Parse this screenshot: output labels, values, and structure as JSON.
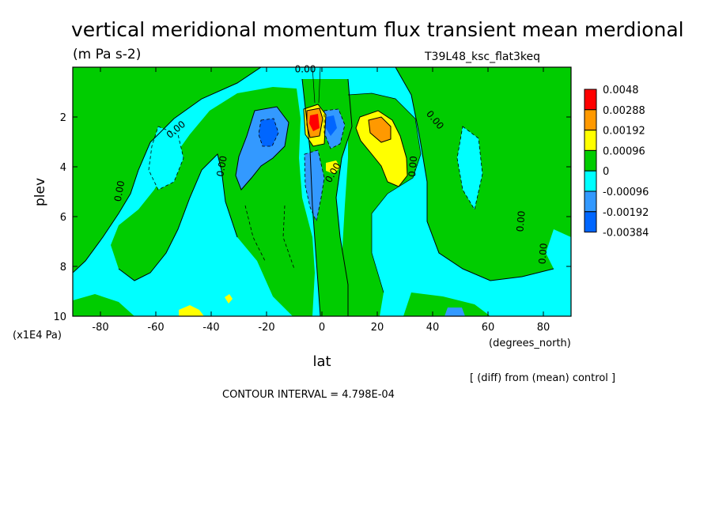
{
  "chart_data": {
    "type": "heatmap",
    "title": "vertical meridional momentum flux transient mean merdional",
    "units": "(m Pa s-2)",
    "experiment": "T39L48_ksc_flat3keq",
    "xlabel": "lat",
    "xunits": "(degrees_north)",
    "ylabel": "plev",
    "yunits": "(x1E4 Pa)",
    "diff_note": "[ (diff) from (mean) control ]",
    "contour_interval": "CONTOUR INTERVAL = 4.798E-04",
    "xlim": [
      -90,
      90
    ],
    "ylim": [
      0,
      10
    ],
    "y_inverted": true,
    "x_ticks": [
      -80,
      -60,
      -40,
      -20,
      0,
      20,
      40,
      60,
      80
    ],
    "x_tick_labels": [
      "-80",
      "-60",
      "-40",
      "-20",
      "0",
      "20",
      "40",
      "60",
      "80"
    ],
    "y_ticks": [
      2,
      4,
      6,
      8,
      10
    ],
    "y_tick_labels": [
      "2",
      "4",
      "6",
      "8",
      "10"
    ],
    "colorbar": {
      "labels": [
        "0.0048",
        "0.00288",
        "0.00192",
        "0.00096",
        "0",
        "-0.00096",
        "-0.00192",
        "-0.00384"
      ],
      "colors": [
        "#ff0000",
        "#ff9900",
        "#ffff00",
        "#00cc00",
        "#00ffff",
        "#3399ff",
        "#0066ff"
      ]
    },
    "contour_labels": [
      {
        "text": "0.00",
        "lat": -52,
        "plev": 2.6,
        "angle": -40
      },
      {
        "text": "0.00",
        "lat": -72,
        "plev": 5.0,
        "angle": -80
      },
      {
        "text": "0.00",
        "lat": -35,
        "plev": 4.0,
        "angle": -80
      },
      {
        "text": "0.00",
        "lat": -6,
        "plev": 0.2,
        "angle": 0
      },
      {
        "text": "0.00",
        "lat": 5,
        "plev": 4.3,
        "angle": -60
      },
      {
        "text": "0.00",
        "lat": 34,
        "plev": 4.0,
        "angle": -85
      },
      {
        "text": "0.00",
        "lat": 40,
        "plev": 2.2,
        "angle": 50
      },
      {
        "text": "0.00",
        "lat": 73,
        "plev": 6.2,
        "angle": -85
      },
      {
        "text": "0.00",
        "lat": 81,
        "plev": 7.5,
        "angle": -85
      }
    ],
    "fields": [
      {
        "band": "positive_high",
        "value_range": [
          0.00288,
          0.0048
        ],
        "lat": [
          -3,
          2
        ],
        "plev": [
          1.8,
          3.0
        ]
      },
      {
        "band": "positive_mid",
        "value_range": [
          0.00192,
          0.00288
        ],
        "lat": [
          18,
          24
        ],
        "plev": [
          2.1,
          3.2
        ]
      },
      {
        "band": "positive_low",
        "value_range": [
          0.00096,
          0.00192
        ],
        "lat": [
          13,
          31
        ],
        "plev": [
          1.8,
          4.8
        ]
      },
      {
        "band": "negative_low",
        "value_range": [
          -0.00192,
          -0.00096
        ],
        "lat": [
          -30,
          -10
        ],
        "plev": [
          1.8,
          4.8
        ]
      },
      {
        "band": "negative_low",
        "value_range": [
          -0.00192,
          -0.00096
        ],
        "lat": [
          -6,
          1
        ],
        "plev": [
          3.5,
          9.6
        ]
      },
      {
        "band": "negative_mid",
        "value_range": [
          -0.00384,
          -0.00192
        ],
        "lat": [
          2,
          8
        ],
        "plev": [
          1.5,
          3.2
        ]
      }
    ]
  }
}
